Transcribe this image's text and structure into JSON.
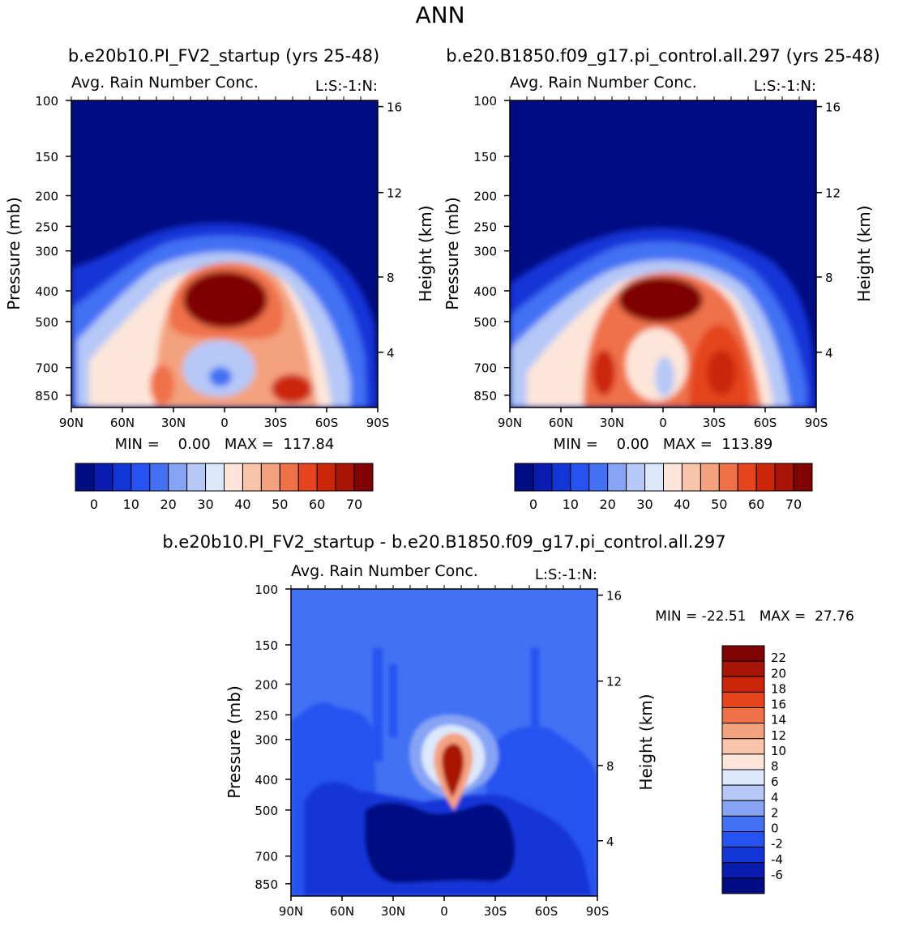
{
  "title": "ANN",
  "colors": {
    "full_scale": [
      "#000c82",
      "#0a1bb0",
      "#1235d8",
      "#2552f0",
      "#4271f4",
      "#86a3f4",
      "#b5c8f7",
      "#dce8fb",
      "#fde6d9",
      "#f9c4a9",
      "#f4a17e",
      "#ef7148",
      "#e5441c",
      "#cc2608",
      "#a81506",
      "#7f0303"
    ],
    "diff_scale": [
      "#000c82",
      "#0a1bb0",
      "#1235d8",
      "#2552f0",
      "#4271f4",
      "#86a3f4",
      "#b5c8f7",
      "#dce8fb",
      "#fde6d9",
      "#f9c4a9",
      "#f4a17e",
      "#ef7148",
      "#e5441c",
      "#cc2608",
      "#a81506",
      "#7f0303"
    ]
  },
  "chart_data": [
    {
      "type": "heatmap",
      "top_title": "b.e20b10.PI_FV2_startup (yrs 25-48)",
      "title": "Avg. Rain Number Conc.",
      "subtitle": "L:S:-1:N:",
      "ylabel": "Pressure (mb)",
      "ylabel_right": "Height (km)",
      "x_ticks": [
        "90N",
        "60N",
        "30N",
        "0",
        "30S",
        "60S",
        "90S"
      ],
      "y_ticks": [
        "100",
        "150",
        "200",
        "250",
        "300",
        "400",
        "500",
        "700",
        "850"
      ],
      "y_right_ticks": [
        "16",
        "12",
        "8",
        "4"
      ],
      "min_max_text": "MIN =    0.00   MAX =  117.84",
      "min": 0.0,
      "max": 117.84,
      "colorbar_labels": [
        "0",
        "10",
        "20",
        "30",
        "40",
        "50",
        "60",
        "70"
      ]
    },
    {
      "type": "heatmap",
      "top_title": "b.e20.B1850.f09_g17.pi_control.all.297 (yrs 25-48)",
      "title": "Avg. Rain Number Conc.",
      "subtitle": "L:S:-1:N:",
      "ylabel": "Pressure (mb)",
      "ylabel_right": "Height (km)",
      "x_ticks": [
        "90N",
        "60N",
        "30N",
        "0",
        "30S",
        "60S",
        "90S"
      ],
      "y_ticks": [
        "100",
        "150",
        "200",
        "250",
        "300",
        "400",
        "500",
        "700",
        "850"
      ],
      "y_right_ticks": [
        "16",
        "12",
        "8",
        "4"
      ],
      "min_max_text": "MIN =    0.00   MAX =  113.89",
      "min": 0.0,
      "max": 113.89,
      "colorbar_labels": [
        "0",
        "10",
        "20",
        "30",
        "40",
        "50",
        "60",
        "70"
      ]
    },
    {
      "type": "heatmap",
      "top_title": "b.e20b10.PI_FV2_startup - b.e20.B1850.f09_g17.pi_control.all.297",
      "title": "Avg. Rain Number Conc.",
      "subtitle": "L:S:-1:N:",
      "ylabel": "Pressure (mb)",
      "ylabel_right": "Height (km)",
      "x_ticks": [
        "90N",
        "60N",
        "30N",
        "0",
        "30S",
        "60S",
        "90S"
      ],
      "y_ticks": [
        "100",
        "150",
        "200",
        "250",
        "300",
        "400",
        "500",
        "700",
        "850"
      ],
      "y_right_ticks": [
        "16",
        "12",
        "8",
        "4"
      ],
      "min_max_text": "MIN = -22.51   MAX =  27.76",
      "min": -22.51,
      "max": 27.76,
      "colorbar_labels": [
        "22",
        "20",
        "18",
        "16",
        "14",
        "12",
        "10",
        "8",
        "6",
        "4",
        "2",
        "0",
        "-2",
        "-4",
        "-6"
      ]
    }
  ]
}
